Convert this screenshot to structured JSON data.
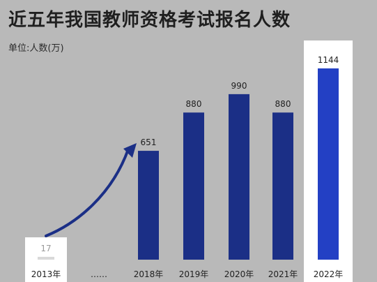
{
  "title": "近五年我国教师资格考试报名人数",
  "unit_label": "单位:人数(万)",
  "chart_data": {
    "type": "bar",
    "title": "近五年我国教师资格考试报名人数",
    "ylabel": "单位:人数(万)",
    "xlabel": "",
    "categories": [
      "2013年",
      "……",
      "2018年",
      "2019年",
      "2020年",
      "2021年",
      "2022年"
    ],
    "values": [
      17,
      null,
      651,
      880,
      990,
      880,
      1144
    ],
    "data_labels": [
      "17",
      "",
      "651",
      "880",
      "990",
      "880",
      "1144"
    ],
    "ylim": [
      0,
      1144
    ],
    "grid": false,
    "legend": "none",
    "colors": {
      "background": "#b9b9b9",
      "bar": "#1b2f86",
      "bar_highlight": "#2340c4",
      "bar_2013": "#d9d9d9",
      "highlight_panel": "#ffffff",
      "arrow": "#1b2f86",
      "label": "#1f1f1f"
    },
    "highlighted": [
      "2013年",
      "2022年"
    ]
  }
}
